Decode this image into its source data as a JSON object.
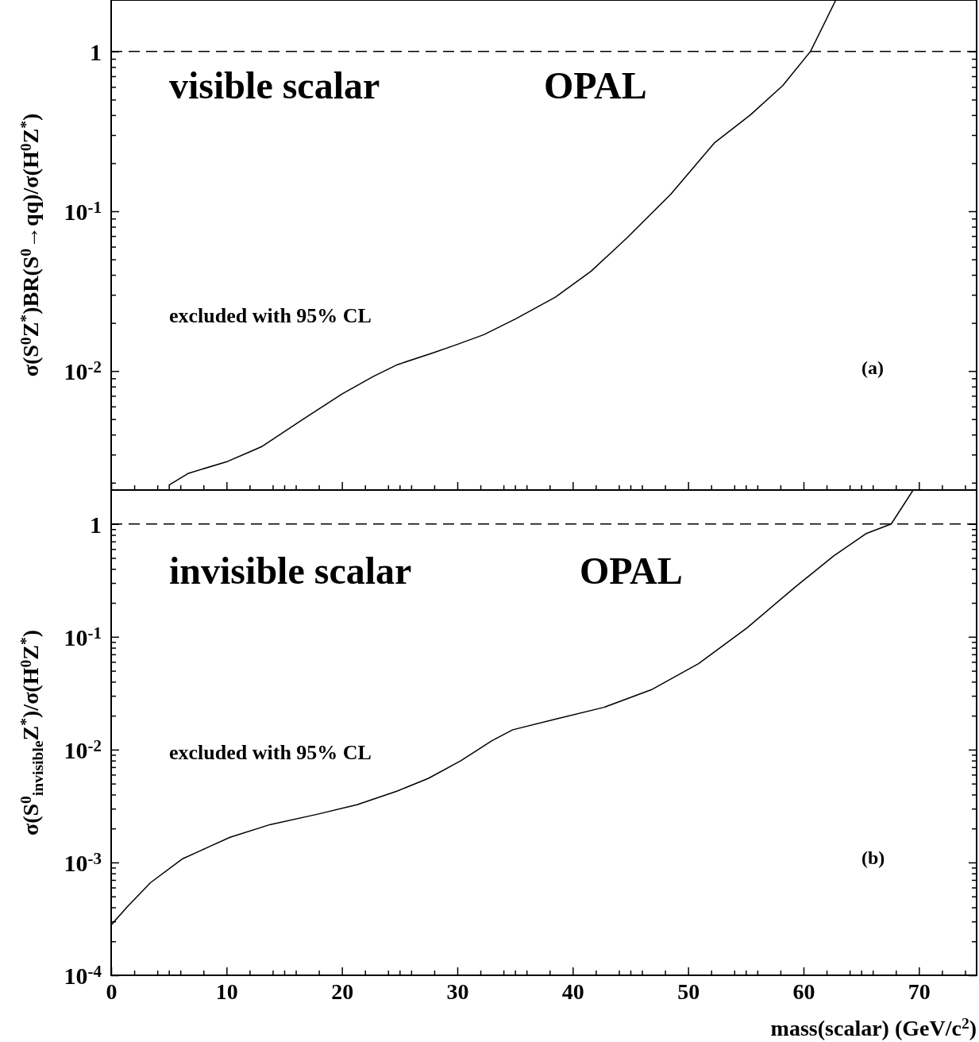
{
  "chart_data": [
    {
      "type": "line",
      "ylabel": "σ(S$^{0}$Z$^{*}$)BR(S$^{0}$→qq)/σ(H$^{0}$Z$^{*}$)",
      "log": "y",
      "xlim": [
        0,
        75
      ],
      "ylim": [
        0.0018,
        2.1
      ],
      "xticks": [
        0,
        {
          "value": 2,
          "label": null
        },
        {
          "value": 4,
          "label": null
        },
        {
          "value": 5,
          "label": null
        },
        {
          "value": 6,
          "label": null
        },
        {
          "value": 8,
          "label": null
        },
        10,
        {
          "value": 12,
          "label": null
        },
        {
          "value": 14,
          "label": null
        },
        {
          "value": 15,
          "label": null
        },
        {
          "value": 16,
          "label": null
        },
        {
          "value": 18,
          "label": null
        },
        20,
        {
          "value": 22,
          "label": null
        },
        {
          "value": 24,
          "label": null
        },
        {
          "value": 25,
          "label": null
        },
        {
          "value": 26,
          "label": null
        },
        {
          "value": 28,
          "label": null
        },
        30,
        {
          "value": 32,
          "label": null
        },
        {
          "value": 34,
          "label": null
        },
        {
          "value": 35,
          "label": null
        },
        {
          "value": 36,
          "label": null
        },
        {
          "value": 38,
          "label": null
        },
        40,
        {
          "value": 42,
          "label": null
        },
        {
          "value": 44,
          "label": null
        },
        {
          "value": 45,
          "label": null
        },
        {
          "value": 46,
          "label": null
        },
        {
          "value": 48,
          "label": null
        },
        50,
        {
          "value": 52,
          "label": null
        },
        {
          "value": 54,
          "label": null
        },
        {
          "value": 55,
          "label": null
        },
        {
          "value": 56,
          "label": null
        },
        {
          "value": 58,
          "label": null
        },
        60,
        {
          "value": 62,
          "label": null
        },
        {
          "value": 64,
          "label": null
        },
        {
          "value": 65,
          "label": null
        },
        {
          "value": 66,
          "label": null
        },
        {
          "value": 68,
          "label": null
        },
        70,
        {
          "value": 72,
          "label": null
        },
        {
          "value": 74,
          "label": null
        }
      ],
      "yticks": [
        {
          "value": 0.002,
          "label": null
        },
        {
          "value": 0.003,
          "label": null
        },
        {
          "value": 0.004,
          "label": null
        },
        {
          "value": 0.005,
          "label": null
        },
        {
          "value": 0.006,
          "label": null
        },
        {
          "value": 0.007,
          "label": null
        },
        {
          "value": 0.008,
          "label": null
        },
        {
          "value": 0.009,
          "label": null
        },
        {
          "value": 0.01,
          "label": "10$^{-2}$"
        },
        {
          "value": 0.02,
          "label": null
        },
        {
          "value": 0.03,
          "label": null
        },
        {
          "value": 0.04,
          "label": null
        },
        {
          "value": 0.05,
          "label": null
        },
        {
          "value": 0.06,
          "label": null
        },
        {
          "value": 0.07,
          "label": null
        },
        {
          "value": 0.08,
          "label": null
        },
        {
          "value": 0.09,
          "label": null
        },
        {
          "value": 0.1,
          "label": "10$^{-1}$"
        },
        {
          "value": 0.2,
          "label": null
        },
        {
          "value": 0.3,
          "label": null
        },
        {
          "value": 0.4,
          "label": null
        },
        {
          "value": 0.5,
          "label": null
        },
        {
          "value": 0.6,
          "label": null
        },
        {
          "value": 0.7,
          "label": null
        },
        {
          "value": 0.8,
          "label": null
        },
        {
          "value": 0.9,
          "label": null
        },
        1
      ],
      "tick_labels": "y",
      "grid": false,
      "marker": "none",
      "series": [
        {
          "color": "#000000",
          "x": [
            5.0,
            6.7,
            10.1,
            12.0,
            13.1,
            16.5,
            20.0,
            22.7,
            24.8,
            27.9,
            29.9,
            32.3,
            35.1,
            38.5,
            41.6,
            44.7,
            48.5,
            52.3,
            55.4,
            58.2,
            60.6,
            62.8
          ],
          "values": [
            0.00193,
            0.00229,
            0.00272,
            0.00312,
            0.00338,
            0.00492,
            0.00718,
            0.00923,
            0.01096,
            0.013,
            0.0146,
            0.0169,
            0.0213,
            0.029,
            0.0422,
            0.0682,
            0.128,
            0.269,
            0.401,
            0.612,
            1.0,
            2.1
          ]
        }
      ],
      "ref_lines": [
        {
          "axis": "y",
          "value": 1,
          "line_style": "dashed"
        }
      ],
      "annotations": [
        "visible scalar",
        "OPAL",
        "excluded with 95% CL",
        "(a)"
      ]
    },
    {
      "type": "line",
      "xlabel": "mass(scalar) (GeV/c$^{2}$)",
      "ylabel": "σ(S$^{0}$$_{invisible}$Z$^{*}$)/σ(H$^{0}$Z$^{*}$)",
      "log": "y",
      "xlim": [
        0,
        75
      ],
      "ylim": [
        0.0001,
        2.0
      ],
      "xticks": [
        0,
        {
          "value": 2,
          "label": null
        },
        {
          "value": 4,
          "label": null
        },
        {
          "value": 5,
          "label": null
        },
        {
          "value": 6,
          "label": null
        },
        {
          "value": 8,
          "label": null
        },
        10,
        {
          "value": 12,
          "label": null
        },
        {
          "value": 14,
          "label": null
        },
        {
          "value": 15,
          "label": null
        },
        {
          "value": 16,
          "label": null
        },
        {
          "value": 18,
          "label": null
        },
        20,
        {
          "value": 22,
          "label": null
        },
        {
          "value": 24,
          "label": null
        },
        {
          "value": 25,
          "label": null
        },
        {
          "value": 26,
          "label": null
        },
        {
          "value": 28,
          "label": null
        },
        30,
        {
          "value": 32,
          "label": null
        },
        {
          "value": 34,
          "label": null
        },
        {
          "value": 35,
          "label": null
        },
        {
          "value": 36,
          "label": null
        },
        {
          "value": 38,
          "label": null
        },
        40,
        {
          "value": 42,
          "label": null
        },
        {
          "value": 44,
          "label": null
        },
        {
          "value": 45,
          "label": null
        },
        {
          "value": 46,
          "label": null
        },
        {
          "value": 48,
          "label": null
        },
        50,
        {
          "value": 52,
          "label": null
        },
        {
          "value": 54,
          "label": null
        },
        {
          "value": 55,
          "label": null
        },
        {
          "value": 56,
          "label": null
        },
        {
          "value": 58,
          "label": null
        },
        60,
        {
          "value": 62,
          "label": null
        },
        {
          "value": 64,
          "label": null
        },
        {
          "value": 65,
          "label": null
        },
        {
          "value": 66,
          "label": null
        },
        {
          "value": 68,
          "label": null
        },
        70,
        {
          "value": 72,
          "label": null
        },
        {
          "value": 74,
          "label": null
        }
      ],
      "yticks": [
        {
          "value": 0.0001,
          "label": "10$^{-4}$"
        },
        {
          "value": 0.0002,
          "label": null
        },
        {
          "value": 0.0003,
          "label": null
        },
        {
          "value": 0.0004,
          "label": null
        },
        {
          "value": 0.0005,
          "label": null
        },
        {
          "value": 0.0006,
          "label": null
        },
        {
          "value": 0.0007,
          "label": null
        },
        {
          "value": 0.0008,
          "label": null
        },
        {
          "value": 0.0009,
          "label": null
        },
        {
          "value": 0.001,
          "label": "10$^{-3}$"
        },
        {
          "value": 0.002,
          "label": null
        },
        {
          "value": 0.003,
          "label": null
        },
        {
          "value": 0.004,
          "label": null
        },
        {
          "value": 0.005,
          "label": null
        },
        {
          "value": 0.006,
          "label": null
        },
        {
          "value": 0.007,
          "label": null
        },
        {
          "value": 0.008,
          "label": null
        },
        {
          "value": 0.009,
          "label": null
        },
        {
          "value": 0.01,
          "label": "10$^{-2}$"
        },
        {
          "value": 0.02,
          "label": null
        },
        {
          "value": 0.03,
          "label": null
        },
        {
          "value": 0.04,
          "label": null
        },
        {
          "value": 0.05,
          "label": null
        },
        {
          "value": 0.06,
          "label": null
        },
        {
          "value": 0.07,
          "label": null
        },
        {
          "value": 0.08,
          "label": null
        },
        {
          "value": 0.09,
          "label": null
        },
        {
          "value": 0.1,
          "label": "10$^{-1}$"
        },
        {
          "value": 0.2,
          "label": null
        },
        {
          "value": 0.3,
          "label": null
        },
        {
          "value": 0.4,
          "label": null
        },
        {
          "value": 0.5,
          "label": null
        },
        {
          "value": 0.6,
          "label": null
        },
        {
          "value": 0.7,
          "label": null
        },
        {
          "value": 0.8,
          "label": null
        },
        {
          "value": 0.9,
          "label": null
        },
        1
      ],
      "grid": false,
      "marker": "none",
      "series": [
        {
          "color": "#000000",
          "x": [
            0,
            1.4,
            3.4,
            6.2,
            8.3,
            10.3,
            13.8,
            17.9,
            21.3,
            24.8,
            27.5,
            30.3,
            33.0,
            34.8,
            38.5,
            42.7,
            46.8,
            50.9,
            55.1,
            59.2,
            62.6,
            65.4,
            67.6,
            69.5
          ],
          "values": [
            0.000279,
            0.000405,
            0.000661,
            0.00108,
            0.00135,
            0.00167,
            0.00217,
            0.00268,
            0.00325,
            0.0043,
            0.00557,
            0.00796,
            0.012,
            0.015,
            0.0186,
            0.0237,
            0.0339,
            0.0579,
            0.12,
            0.272,
            0.52,
            0.82,
            1.0,
            2.0
          ]
        }
      ],
      "ref_lines": [
        {
          "axis": "y",
          "value": 1,
          "line_style": "dashed"
        }
      ],
      "annotations": [
        "invisible scalar",
        "OPAL",
        "excluded with 95% CL",
        "(b)"
      ]
    }
  ]
}
